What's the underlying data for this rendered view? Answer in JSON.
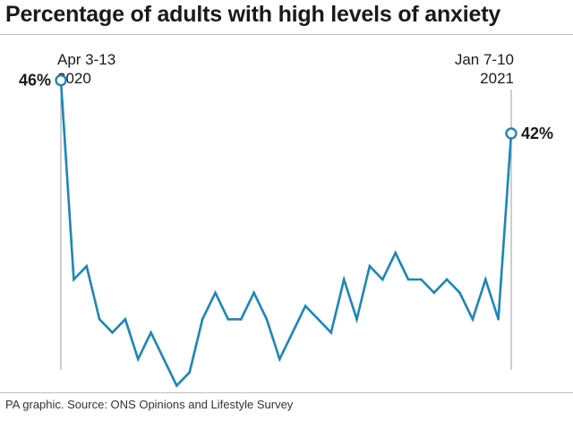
{
  "title": "Percentage of adults with high levels of anxiety",
  "source": "PA graphic. Source: ONS Opinions and Lifestyle Survey",
  "colors": {
    "line": "#1b86b8",
    "marker_fill": "#ffffff",
    "guide": "#9e9e9e",
    "text": "#1a1a1a"
  },
  "chart_data": {
    "type": "line",
    "title": "Percentage of adults with high levels of anxiety",
    "xlabel": "",
    "ylabel": "",
    "ylim": [
      20,
      48
    ],
    "grid": false,
    "legend": "none",
    "start_label": [
      "Apr 3-13",
      "2020"
    ],
    "end_label": [
      "Jan 7-10",
      "2021"
    ],
    "first_value_label": "46%",
    "last_value_label": "42%",
    "series": [
      {
        "values": [
          46,
          31,
          32,
          28,
          27,
          28,
          25,
          27,
          25,
          23,
          24,
          28,
          30,
          28,
          28,
          30,
          28,
          25,
          27,
          29,
          28,
          27,
          31,
          28,
          32,
          31,
          33,
          31,
          31,
          30,
          31,
          30,
          28,
          31,
          28,
          42
        ]
      }
    ]
  }
}
